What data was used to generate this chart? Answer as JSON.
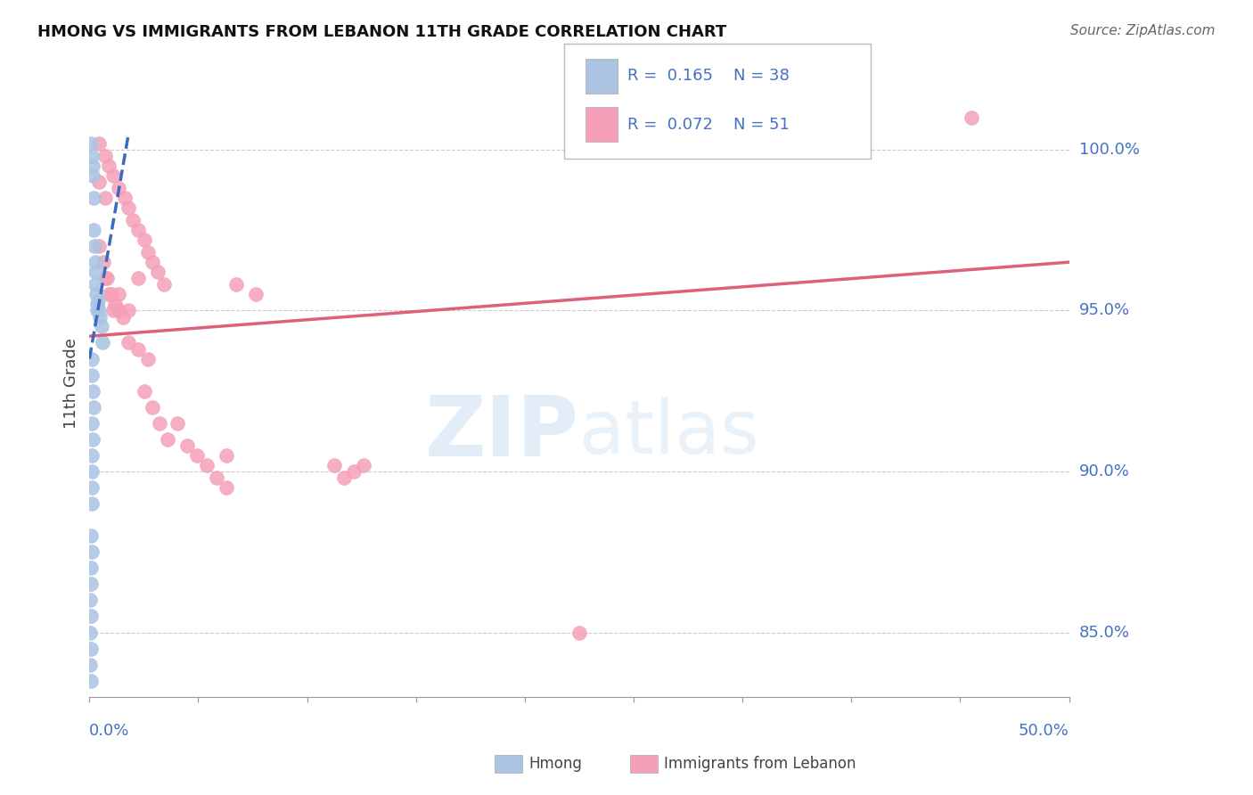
{
  "title": "HMONG VS IMMIGRANTS FROM LEBANON 11TH GRADE CORRELATION CHART",
  "source": "Source: ZipAtlas.com",
  "ylabel": "11th Grade",
  "xlim": [
    0.0,
    50.0
  ],
  "ylim": [
    83.0,
    102.5
  ],
  "ytick_values": [
    85.0,
    90.0,
    95.0,
    100.0
  ],
  "ytick_labels": [
    "85.0%",
    "90.0%",
    "95.0%",
    "100.0%"
  ],
  "legend_r_hmong": "0.165",
  "legend_n_hmong": "38",
  "legend_r_leb": "0.072",
  "legend_n_leb": "51",
  "hmong_color": "#aac4e2",
  "leb_color": "#f5a0b8",
  "trend_hmong_color": "#3a6bbf",
  "trend_leb_color": "#e0607a",
  "hmong_x": [
    0.08,
    0.12,
    0.15,
    0.18,
    0.2,
    0.22,
    0.25,
    0.28,
    0.3,
    0.32,
    0.35,
    0.38,
    0.4,
    0.45,
    0.5,
    0.55,
    0.6,
    0.65,
    0.1,
    0.12,
    0.15,
    0.2,
    0.12,
    0.15,
    0.12,
    0.1,
    0.12,
    0.1,
    0.08,
    0.1,
    0.08,
    0.06,
    0.05,
    0.08,
    0.05,
    0.07,
    0.05,
    0.06
  ],
  "hmong_y": [
    100.2,
    99.8,
    99.5,
    99.2,
    98.5,
    97.5,
    97.0,
    96.5,
    96.2,
    95.8,
    95.5,
    95.2,
    95.0,
    95.3,
    95.0,
    94.8,
    94.5,
    94.0,
    93.5,
    93.0,
    92.5,
    92.0,
    91.5,
    91.0,
    90.5,
    90.0,
    89.5,
    89.0,
    88.0,
    87.5,
    87.0,
    86.5,
    86.0,
    85.5,
    85.0,
    84.5,
    84.0,
    83.5
  ],
  "leb_x": [
    0.5,
    0.8,
    1.0,
    1.2,
    1.5,
    1.8,
    2.0,
    2.2,
    2.5,
    2.8,
    3.0,
    3.2,
    3.5,
    3.8,
    0.5,
    0.7,
    0.9,
    1.1,
    1.3,
    1.5,
    1.7,
    0.8,
    1.0,
    1.2,
    2.0,
    2.5,
    3.0,
    2.8,
    3.2,
    3.6,
    4.0,
    4.5,
    5.0,
    5.5,
    6.0,
    6.5,
    7.0,
    1.5,
    2.0,
    2.5,
    0.5,
    0.8,
    45.0,
    7.5,
    8.5,
    13.0,
    14.0,
    13.5,
    7.0,
    12.5,
    25.0
  ],
  "leb_y": [
    100.2,
    99.8,
    99.5,
    99.2,
    98.8,
    98.5,
    98.2,
    97.8,
    97.5,
    97.2,
    96.8,
    96.5,
    96.2,
    95.8,
    97.0,
    96.5,
    96.0,
    95.5,
    95.2,
    95.0,
    94.8,
    96.0,
    95.5,
    95.0,
    94.0,
    93.8,
    93.5,
    92.5,
    92.0,
    91.5,
    91.0,
    91.5,
    90.8,
    90.5,
    90.2,
    89.8,
    89.5,
    95.5,
    95.0,
    96.0,
    99.0,
    98.5,
    101.0,
    95.8,
    95.5,
    89.8,
    90.2,
    90.0,
    90.5,
    90.2,
    85.0
  ],
  "trend_leb_x0": 0.0,
  "trend_leb_y0": 94.2,
  "trend_leb_x1": 50.0,
  "trend_leb_y1": 96.5,
  "trend_hmong_x0": 0.0,
  "trend_hmong_y0": 93.5,
  "trend_hmong_x1": 2.0,
  "trend_hmong_y1": 100.5
}
